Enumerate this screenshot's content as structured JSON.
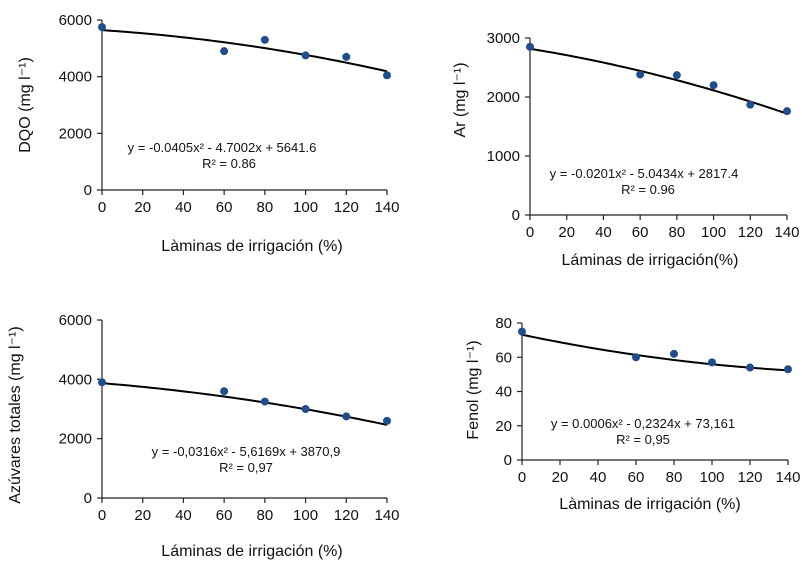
{
  "chart_data": [
    {
      "type": "scatter",
      "xlabel": "Làminas de irrigación (%)",
      "ylabel": "DQO (mg l⁻¹)",
      "xlim": [
        0,
        140
      ],
      "ylim": [
        0,
        6000
      ],
      "xticks": [
        "0",
        "20",
        "40",
        "60",
        "80",
        "100",
        "120",
        "140"
      ],
      "yticks": [
        "0",
        "2000",
        "4000",
        "6000"
      ],
      "x": [
        0,
        60,
        80,
        100,
        120,
        140
      ],
      "y": [
        5750,
        4900,
        5300,
        4750,
        4700,
        4050
      ],
      "trend": {
        "type": "polynomial",
        "a": -0.0405,
        "b": -4.7002,
        "c": 5641.6
      },
      "equation": "y = -0.0405x² - 4.7002x + 5641.6",
      "r2": "R² = 0.86",
      "point_color": "#1f4e8c"
    },
    {
      "type": "scatter",
      "xlabel": "Láminas de irrigación(%)",
      "ylabel": "Ar (mg l⁻¹)",
      "xlim": [
        0,
        140
      ],
      "ylim": [
        0,
        3000
      ],
      "xticks": [
        "0",
        "20",
        "40",
        "60",
        "80",
        "100",
        "120",
        "140"
      ],
      "yticks": [
        "0",
        "1000",
        "2000",
        "3000"
      ],
      "x": [
        0,
        60,
        80,
        100,
        120,
        140
      ],
      "y": [
        2850,
        2380,
        2370,
        2200,
        1870,
        1760
      ],
      "trend": {
        "type": "polynomial",
        "a": -0.0201,
        "b": -5.0434,
        "c": 2817.4
      },
      "equation": "y = -0.0201x² - 5.0434x + 2817.4",
      "r2": "R² = 0.96",
      "point_color": "#1f4e8c"
    },
    {
      "type": "scatter",
      "xlabel": "Láminas de irrigación (%)",
      "ylabel": "Azúvares totales (mg l⁻¹)",
      "xlim": [
        0,
        140
      ],
      "ylim": [
        0,
        6000
      ],
      "xticks": [
        "0",
        "20",
        "40",
        "60",
        "80",
        "100",
        "120",
        "140"
      ],
      "yticks": [
        "0",
        "2000",
        "4000",
        "6000"
      ],
      "x": [
        0,
        60,
        80,
        100,
        120,
        140
      ],
      "y": [
        3900,
        3600,
        3250,
        3000,
        2750,
        2600
      ],
      "trend": {
        "type": "polynomial",
        "a": -0.0316,
        "b": -5.6169,
        "c": 3870.9
      },
      "equation": "y = -0,0316x² - 5,6169x + 3870,9",
      "r2": "R² = 0,97",
      "point_color": "#1f4e8c"
    },
    {
      "type": "scatter",
      "xlabel": "Làminas de irrigación (%)",
      "ylabel": "Fenol (mg l⁻¹)",
      "xlim": [
        0,
        140
      ],
      "ylim": [
        0,
        80
      ],
      "xticks": [
        "0",
        "20",
        "40",
        "60",
        "80",
        "100",
        "120",
        "140"
      ],
      "yticks": [
        "0",
        "20",
        "40",
        "60",
        "80"
      ],
      "x": [
        0,
        60,
        80,
        100,
        120,
        140
      ],
      "y": [
        75,
        60,
        62,
        57,
        54,
        53
      ],
      "trend": {
        "type": "polynomial",
        "a": 0.0006,
        "b": -0.2324,
        "c": 73.161
      },
      "equation": "y = 0.0006x² - 0,2324x + 73,161",
      "r2": "R² = 0,95",
      "point_color": "#1f4e8c"
    }
  ]
}
